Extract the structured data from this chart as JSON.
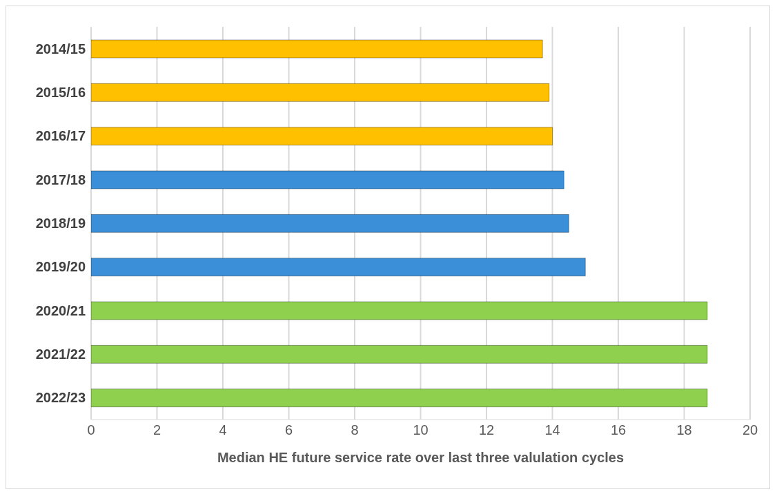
{
  "chart_data": {
    "type": "bar",
    "orientation": "horizontal",
    "xlabel": "Median HE future service rate over last three valulation cycles",
    "categories": [
      "2014/15",
      "2015/16",
      "2016/17",
      "2017/18",
      "2018/19",
      "2019/20",
      "2020/21",
      "2021/22",
      "2022/23"
    ],
    "values": [
      13.7,
      13.9,
      14.0,
      14.35,
      14.5,
      15.0,
      18.7,
      18.7,
      18.7
    ],
    "colors": [
      "#ffc000",
      "#ffc000",
      "#ffc000",
      "#3a8fd8",
      "#3a8fd8",
      "#3a8fd8",
      "#8fd14f",
      "#8fd14f",
      "#8fd14f"
    ],
    "xlim": [
      0,
      20
    ],
    "xticks": [
      0,
      2,
      4,
      6,
      8,
      10,
      12,
      14,
      16,
      18,
      20
    ],
    "grid": "x"
  }
}
